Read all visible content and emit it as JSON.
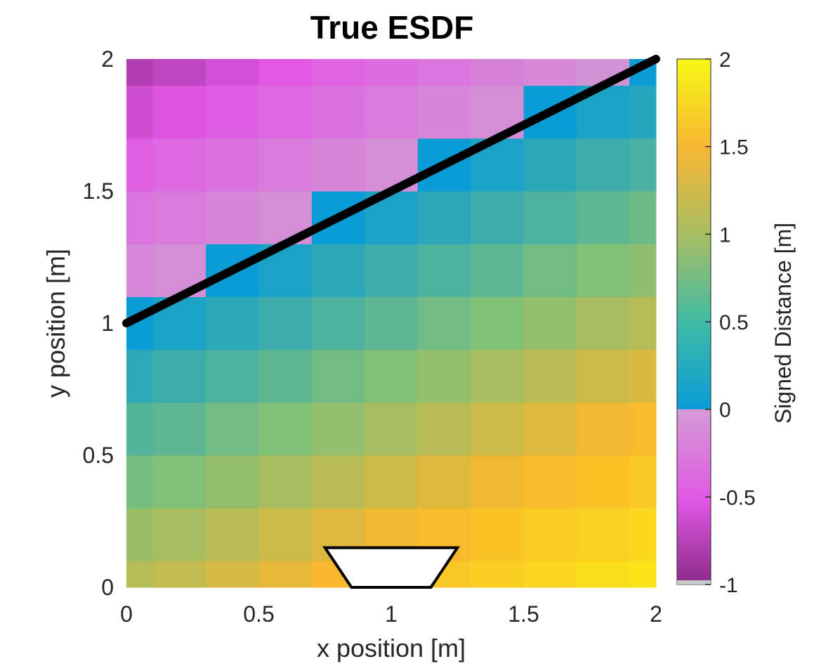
{
  "chart_data": {
    "type": "heatmap",
    "title": "True ESDF",
    "xlabel": "x position [m]",
    "ylabel": "y position [m]",
    "colorbar_label": "Signed Distance [m]",
    "xlim": [
      0,
      2
    ],
    "ylim": [
      0,
      2
    ],
    "clim": [
      -1,
      2
    ],
    "x_ticks": [
      "0",
      "0.5",
      "1",
      "1.5",
      "2"
    ],
    "y_ticks": [
      "0",
      "0.5",
      "1",
      "1.5",
      "2"
    ],
    "colorbar_ticks": [
      "-1",
      "-0.5",
      "0",
      "0.5",
      "1",
      "1.5",
      "2"
    ],
    "x_edges": [
      0,
      0.1,
      0.3,
      0.5,
      0.7,
      0.9,
      1.1,
      1.3,
      1.5,
      1.7,
      1.9,
      2.0
    ],
    "y_edges": [
      0,
      0.1,
      0.3,
      0.5,
      0.7,
      0.9,
      1.1,
      1.3,
      1.5,
      1.7,
      1.9,
      2.0
    ],
    "obstacle_line": {
      "x": [
        0,
        2
      ],
      "y": [
        1,
        2
      ]
    },
    "sensor_trapezoid": {
      "x": [
        0.75,
        1.25,
        1.15,
        0.85
      ],
      "y": [
        0.15,
        0.15,
        0,
        0
      ]
    },
    "colors": {
      "line": "#000000",
      "sensor_fill": "#ffffff",
      "negative_low": "#8c2a8c",
      "negative_mid": "#e257e6",
      "negative_high": "#d198d3",
      "zero": "#0a9dd5",
      "mid": "#7cc07a",
      "high": "#f9b72d",
      "max": "#f9fb0e"
    }
  }
}
